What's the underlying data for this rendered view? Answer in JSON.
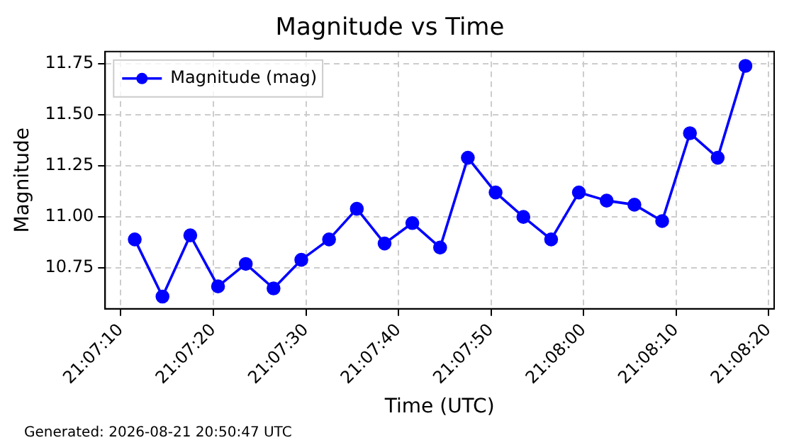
{
  "chart_data": {
    "type": "line",
    "title": "Magnitude vs Time",
    "xlabel": "Time (UTC)",
    "ylabel": "Magnitude",
    "x": [
      21.119861,
      21.120694,
      21.121528,
      21.122361,
      21.123194,
      21.124028,
      21.124861,
      21.125694,
      21.126528,
      21.127361,
      21.128194,
      21.129028,
      21.129861,
      21.130694,
      21.131528,
      21.132361,
      21.133194,
      21.134028,
      21.134861,
      21.135694,
      21.136528,
      21.137361,
      21.138194
    ],
    "series": [
      {
        "name": "Magnitude (mag)",
        "color": "#0000ff",
        "values": [
          10.89,
          10.61,
          10.91,
          10.66,
          10.77,
          10.65,
          10.79,
          10.89,
          11.04,
          10.87,
          10.97,
          10.85,
          11.29,
          11.12,
          11.0,
          10.89,
          11.12,
          11.08,
          11.06,
          10.98,
          11.41,
          11.29,
          11.74
        ]
      }
    ],
    "xlim": [
      21.118972,
      21.139056
    ],
    "xticks": [
      {
        "value": 21.119444,
        "label": "21:07:10"
      },
      {
        "value": 21.122222,
        "label": "21:07:20"
      },
      {
        "value": 21.125,
        "label": "21:07:30"
      },
      {
        "value": 21.127778,
        "label": "21:07:40"
      },
      {
        "value": 21.130556,
        "label": "21:07:50"
      },
      {
        "value": 21.133333,
        "label": "21:08:00"
      },
      {
        "value": 21.136111,
        "label": "21:08:10"
      },
      {
        "value": 21.138889,
        "label": "21:08:20"
      }
    ],
    "ylim": [
      10.55,
      11.81
    ],
    "yticks": [
      {
        "value": 10.75,
        "label": "10.75"
      },
      {
        "value": 11,
        "label": "11.00"
      },
      {
        "value": 11.25,
        "label": "11.25"
      },
      {
        "value": 11.5,
        "label": "11.50"
      },
      {
        "value": 11.75,
        "label": "11.75"
      }
    ],
    "grid": true,
    "legend": "top left",
    "marker": "circle",
    "line_style": "solid",
    "annotations": [
      "Generated: 2026-08-21 20:50:47 UTC"
    ]
  }
}
